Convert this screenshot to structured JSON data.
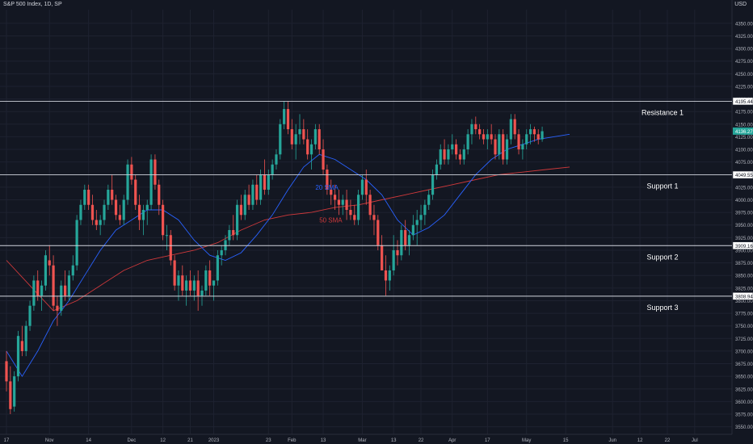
{
  "header": {
    "symbol_line": "S&P 500 Index, 1D, SP",
    "currency": "USD"
  },
  "colors": {
    "background": "#131722",
    "grid": "#1e2230",
    "up": "#26a69a",
    "down": "#ef5350",
    "sma20": "#2962ff",
    "sma50": "#d0393b",
    "level_line": "#d1d4dc",
    "axis_text": "#b2b5be"
  },
  "chart_data": {
    "type": "candlestick",
    "ylim": [
      3535,
      4377
    ],
    "y_ticks": [
      "3550.00",
      "3575.00",
      "3600.00",
      "3625.00",
      "3650.00",
      "3675.00",
      "3700.00",
      "3725.00",
      "3750.00",
      "3775.00",
      "3800.00",
      "3825.00",
      "3850.00",
      "3875.00",
      "3900.00",
      "3925.00",
      "3950.00",
      "3975.00",
      "4000.00",
      "4025.00",
      "4050.00",
      "4075.00",
      "4100.00",
      "4125.00",
      "4150.00",
      "4175.00",
      "4200.00",
      "4225.00",
      "4250.00",
      "4275.00",
      "4300.00",
      "4325.00",
      "4350.00"
    ],
    "x_ticks": [
      {
        "label": "17",
        "bar": 0
      },
      {
        "label": "Nov",
        "bar": 11
      },
      {
        "label": "14",
        "bar": 21
      },
      {
        "label": "Dec",
        "bar": 32
      },
      {
        "label": "12",
        "bar": 40
      },
      {
        "label": "21",
        "bar": 47
      },
      {
        "label": "2023",
        "bar": 53
      },
      {
        "label": "23",
        "bar": 67
      },
      {
        "label": "Feb",
        "bar": 73
      },
      {
        "label": "13",
        "bar": 81
      },
      {
        "label": "Mar",
        "bar": 91
      },
      {
        "label": "13",
        "bar": 99
      },
      {
        "label": "22",
        "bar": 106
      },
      {
        "label": "Apr",
        "bar": 114
      },
      {
        "label": "17",
        "bar": 123
      },
      {
        "label": "May",
        "bar": 133
      },
      {
        "label": "15",
        "bar": 143
      },
      {
        "label": "Jun",
        "bar": 155
      },
      {
        "label": "12",
        "bar": 162
      },
      {
        "label": "22",
        "bar": 169
      },
      {
        "label": "Jul",
        "bar": 176
      }
    ],
    "candles": [
      [
        3680,
        3700,
        3620,
        3640
      ],
      [
        3640,
        3670,
        3575,
        3585
      ],
      [
        3590,
        3660,
        3580,
        3650
      ],
      [
        3650,
        3740,
        3640,
        3730
      ],
      [
        3720,
        3750,
        3690,
        3700
      ],
      [
        3700,
        3760,
        3690,
        3750
      ],
      [
        3750,
        3800,
        3740,
        3790
      ],
      [
        3790,
        3850,
        3780,
        3840
      ],
      [
        3840,
        3860,
        3800,
        3810
      ],
      [
        3810,
        3840,
        3780,
        3830
      ],
      [
        3830,
        3900,
        3820,
        3890
      ],
      [
        3880,
        3910,
        3850,
        3870
      ],
      [
        3870,
        3890,
        3780,
        3790
      ],
      [
        3790,
        3810,
        3750,
        3780
      ],
      [
        3780,
        3840,
        3770,
        3830
      ],
      [
        3830,
        3860,
        3800,
        3810
      ],
      [
        3810,
        3860,
        3800,
        3850
      ],
      [
        3850,
        3890,
        3840,
        3870
      ],
      [
        3870,
        3970,
        3860,
        3960
      ],
      [
        3960,
        4000,
        3950,
        3990
      ],
      [
        3990,
        4030,
        3980,
        4020
      ],
      [
        4020,
        4030,
        3980,
        3990
      ],
      [
        3990,
        4010,
        3950,
        3960
      ],
      [
        3960,
        3980,
        3940,
        3950
      ],
      [
        3950,
        3970,
        3930,
        3960
      ],
      [
        3960,
        4000,
        3950,
        3990
      ],
      [
        3990,
        4030,
        3980,
        4020
      ],
      [
        4020,
        4050,
        3990,
        4000
      ],
      [
        4000,
        4010,
        3960,
        3970
      ],
      [
        3970,
        3990,
        3950,
        3960
      ],
      [
        3960,
        4010,
        3950,
        4000
      ],
      [
        4000,
        4080,
        3990,
        4070
      ],
      [
        4070,
        4085,
        4030,
        4040
      ],
      [
        4040,
        4050,
        3980,
        3990
      ],
      [
        3990,
        4010,
        3940,
        3960
      ],
      [
        3960,
        3990,
        3930,
        3980
      ],
      [
        3980,
        4000,
        3950,
        3990
      ],
      [
        3990,
        4090,
        3980,
        4080
      ],
      [
        4080,
        4090,
        4020,
        4030
      ],
      [
        4030,
        4040,
        3970,
        3990
      ],
      [
        3990,
        4000,
        3920,
        3930
      ],
      [
        3930,
        3950,
        3900,
        3930
      ],
      [
        3930,
        3940,
        3870,
        3880
      ],
      [
        3880,
        3890,
        3820,
        3830
      ],
      [
        3830,
        3860,
        3800,
        3850
      ],
      [
        3850,
        3870,
        3810,
        3820
      ],
      [
        3820,
        3850,
        3790,
        3840
      ],
      [
        3840,
        3860,
        3810,
        3820
      ],
      [
        3820,
        3850,
        3800,
        3840
      ],
      [
        3840,
        3860,
        3780,
        3810
      ],
      [
        3810,
        3830,
        3790,
        3820
      ],
      [
        3820,
        3870,
        3810,
        3860
      ],
      [
        3860,
        3880,
        3810,
        3830
      ],
      [
        3830,
        3840,
        3800,
        3840
      ],
      [
        3840,
        3900,
        3830,
        3890
      ],
      [
        3890,
        3910,
        3870,
        3900
      ],
      [
        3900,
        3930,
        3890,
        3920
      ],
      [
        3920,
        3950,
        3910,
        3940
      ],
      [
        3940,
        3970,
        3920,
        3930
      ],
      [
        3930,
        4000,
        3920,
        3990
      ],
      [
        3990,
        4010,
        3960,
        3970
      ],
      [
        3970,
        4020,
        3960,
        4010
      ],
      [
        4010,
        4030,
        3980,
        3990
      ],
      [
        3990,
        4040,
        3980,
        4030
      ],
      [
        4030,
        4050,
        3990,
        4000
      ],
      [
        4000,
        4060,
        3990,
        4050
      ],
      [
        4050,
        4080,
        4010,
        4020
      ],
      [
        4020,
        4060,
        4010,
        4050
      ],
      [
        4050,
        4080,
        4040,
        4070
      ],
      [
        4070,
        4100,
        4060,
        4090
      ],
      [
        4090,
        4160,
        4080,
        4150
      ],
      [
        4150,
        4195,
        4140,
        4180
      ],
      [
        4180,
        4195,
        4130,
        4140
      ],
      [
        4140,
        4160,
        4100,
        4110
      ],
      [
        4110,
        4150,
        4080,
        4130
      ],
      [
        4130,
        4170,
        4110,
        4140
      ],
      [
        4140,
        4160,
        4110,
        4120
      ],
      [
        4120,
        4140,
        4080,
        4090
      ],
      [
        4090,
        4120,
        4060,
        4110
      ],
      [
        4110,
        4150,
        4100,
        4140
      ],
      [
        4140,
        4150,
        4090,
        4100
      ],
      [
        4100,
        4120,
        4050,
        4060
      ],
      [
        4060,
        4070,
        4010,
        4020
      ],
      [
        4020,
        4040,
        3990,
        4010
      ],
      [
        4010,
        4030,
        3980,
        4000
      ],
      [
        4000,
        4020,
        3970,
        3990
      ],
      [
        3990,
        4010,
        3970,
        4000
      ],
      [
        4000,
        4020,
        3960,
        3980
      ],
      [
        3980,
        4000,
        3960,
        3970
      ],
      [
        3970,
        3990,
        3950,
        3960
      ],
      [
        3960,
        4020,
        3950,
        4010
      ],
      [
        4010,
        4050,
        4000,
        4040
      ],
      [
        4040,
        4060,
        3990,
        4010
      ],
      [
        4010,
        4020,
        3960,
        3970
      ],
      [
        3970,
        3990,
        3930,
        3960
      ],
      [
        3960,
        3970,
        3900,
        3910
      ],
      [
        3910,
        3930,
        3860,
        3860
      ],
      [
        3860,
        3890,
        3810,
        3840
      ],
      [
        3840,
        3870,
        3820,
        3860
      ],
      [
        3860,
        3930,
        3850,
        3900
      ],
      [
        3900,
        3920,
        3870,
        3890
      ],
      [
        3890,
        3950,
        3880,
        3940
      ],
      [
        3940,
        3960,
        3900,
        3910
      ],
      [
        3910,
        3940,
        3890,
        3930
      ],
      [
        3930,
        3970,
        3920,
        3950
      ],
      [
        3950,
        3980,
        3910,
        3960
      ],
      [
        3960,
        3990,
        3940,
        3970
      ],
      [
        3970,
        4000,
        3950,
        3990
      ],
      [
        3990,
        4020,
        3980,
        4010
      ],
      [
        4010,
        4060,
        4000,
        4050
      ],
      [
        4050,
        4080,
        4040,
        4070
      ],
      [
        4070,
        4110,
        4060,
        4100
      ],
      [
        4100,
        4120,
        4070,
        4080
      ],
      [
        4080,
        4110,
        4070,
        4100
      ],
      [
        4100,
        4130,
        4090,
        4110
      ],
      [
        4110,
        4120,
        4080,
        4090
      ],
      [
        4090,
        4100,
        4070,
        4080
      ],
      [
        4080,
        4110,
        4070,
        4100
      ],
      [
        4100,
        4140,
        4090,
        4130
      ],
      [
        4130,
        4160,
        4110,
        4150
      ],
      [
        4150,
        4165,
        4130,
        4140
      ],
      [
        4140,
        4150,
        4120,
        4130
      ],
      [
        4130,
        4140,
        4110,
        4120
      ],
      [
        4120,
        4140,
        4100,
        4130
      ],
      [
        4130,
        4150,
        4110,
        4120
      ],
      [
        4120,
        4130,
        4080,
        4090
      ],
      [
        4090,
        4140,
        4080,
        4130
      ],
      [
        4130,
        4140,
        4070,
        4080
      ],
      [
        4080,
        4130,
        4070,
        4120
      ],
      [
        4120,
        4170,
        4110,
        4160
      ],
      [
        4160,
        4170,
        4120,
        4130
      ],
      [
        4130,
        4140,
        4090,
        4100
      ],
      [
        4100,
        4120,
        4080,
        4110
      ],
      [
        4110,
        4140,
        4100,
        4130
      ],
      [
        4130,
        4150,
        4110,
        4140
      ],
      [
        4140,
        4145,
        4115,
        4130
      ],
      [
        4130,
        4140,
        4110,
        4120
      ],
      [
        4120,
        4145,
        4115,
        4136
      ]
    ],
    "sma20": [
      [
        0,
        3700
      ],
      [
        4,
        3650
      ],
      [
        8,
        3700
      ],
      [
        12,
        3760
      ],
      [
        16,
        3800
      ],
      [
        20,
        3850
      ],
      [
        24,
        3900
      ],
      [
        28,
        3940
      ],
      [
        32,
        3960
      ],
      [
        36,
        3980
      ],
      [
        40,
        3980
      ],
      [
        44,
        3960
      ],
      [
        48,
        3920
      ],
      [
        52,
        3890
      ],
      [
        56,
        3880
      ],
      [
        60,
        3895
      ],
      [
        64,
        3930
      ],
      [
        68,
        3970
      ],
      [
        72,
        4020
      ],
      [
        76,
        4065
      ],
      [
        80,
        4090
      ],
      [
        84,
        4080
      ],
      [
        88,
        4060
      ],
      [
        92,
        4040
      ],
      [
        96,
        4010
      ],
      [
        100,
        3960
      ],
      [
        104,
        3930
      ],
      [
        108,
        3945
      ],
      [
        112,
        3970
      ],
      [
        116,
        4010
      ],
      [
        120,
        4050
      ],
      [
        124,
        4080
      ],
      [
        128,
        4100
      ],
      [
        132,
        4110
      ],
      [
        136,
        4120
      ],
      [
        140,
        4125
      ],
      [
        144,
        4130
      ]
    ],
    "sma50": [
      [
        0,
        3880
      ],
      [
        6,
        3830
      ],
      [
        12,
        3780
      ],
      [
        18,
        3800
      ],
      [
        24,
        3830
      ],
      [
        30,
        3860
      ],
      [
        36,
        3880
      ],
      [
        42,
        3890
      ],
      [
        48,
        3900
      ],
      [
        54,
        3915
      ],
      [
        60,
        3940
      ],
      [
        66,
        3960
      ],
      [
        72,
        3970
      ],
      [
        78,
        3975
      ],
      [
        84,
        3985
      ],
      [
        90,
        3990
      ],
      [
        96,
        4000
      ],
      [
        102,
        4010
      ],
      [
        108,
        4020
      ],
      [
        114,
        4030
      ],
      [
        120,
        4040
      ],
      [
        126,
        4050
      ],
      [
        132,
        4055
      ],
      [
        138,
        4060
      ],
      [
        144,
        4065
      ]
    ],
    "levels": [
      {
        "name": "Resistance 1",
        "value": 4195.44,
        "tag": "4195.44"
      },
      {
        "name": "Support 1",
        "value": 4049.55,
        "tag": "4049.55"
      },
      {
        "name": "Support 2",
        "value": 3909.16,
        "tag": "3909.16"
      },
      {
        "name": "Support 3",
        "value": 3808.94,
        "tag": "3808.94"
      }
    ],
    "last_price": {
      "value": 4136.27,
      "tag": "4136.27"
    },
    "annotations": [
      {
        "text": "20 SMA",
        "x_bar": 79,
        "y": 4020,
        "color_key": "sma20"
      },
      {
        "text": "50 SMA",
        "x_bar": 80,
        "y": 3955,
        "color_key": "sma50"
      }
    ]
  }
}
